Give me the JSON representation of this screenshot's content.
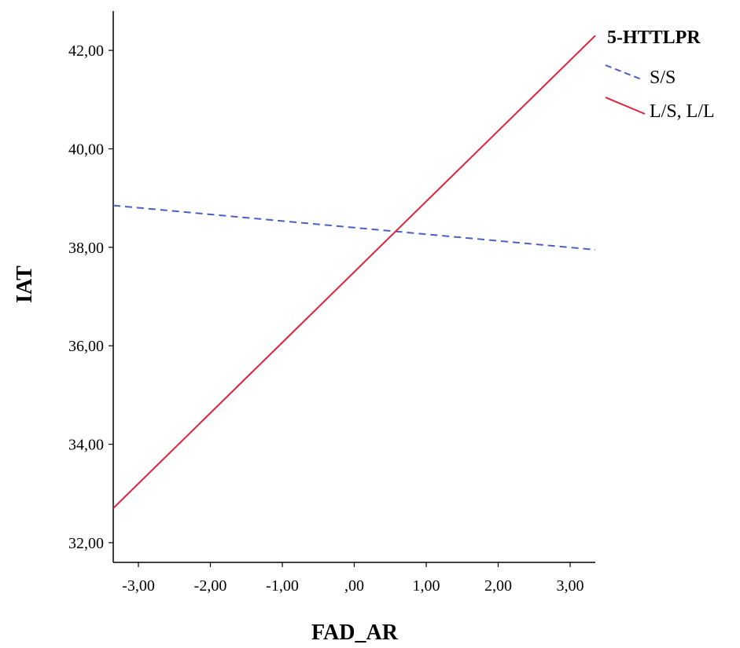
{
  "chart_data": {
    "type": "line",
    "xlabel": "FAD_AR",
    "ylabel": "IAT",
    "xlim": [
      -3.35,
      3.35
    ],
    "ylim": [
      31.6,
      42.8
    ],
    "x_ticks": [
      "-3,00",
      "-2,00",
      "-1,00",
      ",00",
      "1,00",
      "2,00",
      "3,00"
    ],
    "x_tick_values": [
      -3,
      -2,
      -1,
      0,
      1,
      2,
      3
    ],
    "y_ticks": [
      "32,00",
      "34,00",
      "36,00",
      "38,00",
      "40,00",
      "42,00"
    ],
    "y_tick_values": [
      32,
      34,
      36,
      38,
      40,
      42
    ],
    "grid": false,
    "legend": {
      "title": "5-HTTLPR",
      "position": "top-right"
    },
    "series": [
      {
        "name": "S/S",
        "style": "dashed",
        "color": "#4a5fc1",
        "x": [
          -3.35,
          3.35
        ],
        "y": [
          38.85,
          37.95
        ]
      },
      {
        "name": "L/S, L/L",
        "style": "solid",
        "color": "#e0213a",
        "x": [
          -3.35,
          3.35
        ],
        "y": [
          32.7,
          42.3
        ]
      }
    ]
  }
}
